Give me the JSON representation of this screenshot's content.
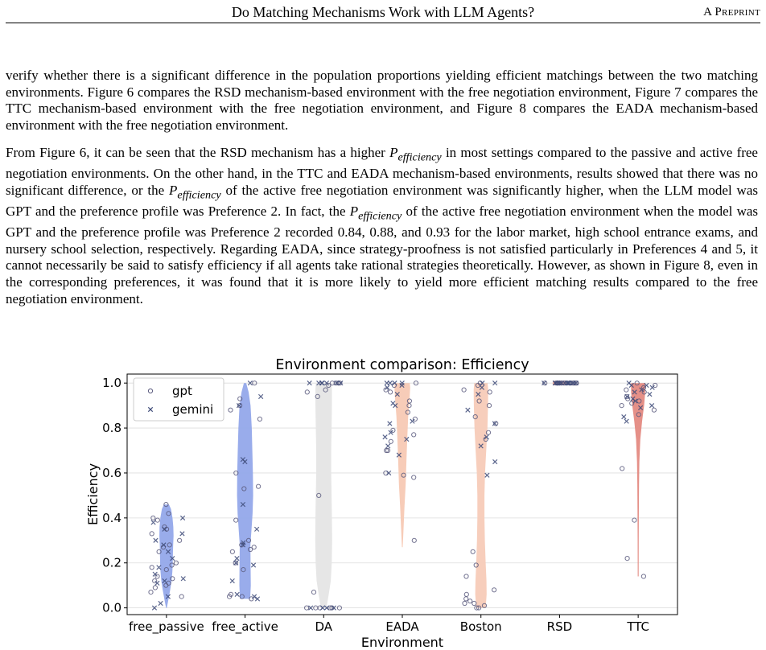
{
  "header": {
    "title": "Do Matching Mechanisms Work with LLM Agents?",
    "right_label": "A Preprint"
  },
  "para1": {
    "text": "verify whether there is a significant difference in the population proportions yielding efficient matchings between the two matching environments. Figure 6 compares the RSD mechanism-based environment with the free negotiation environment, Figure 7 compares the TTC mechanism-based environment with the free negotiation environment, and Figure 8 compares the EADA mechanism-based environment with the free negotiation environment."
  },
  "para2": {
    "s1": "From Figure 6, it can be seen that the RSD mechanism has a higher ",
    "var_1": "P",
    "sub_1": "efficiency",
    "s2": " in most settings compared to the passive and active free negotiation environments. On the other hand, in the TTC and EADA mechanism-based environments, results showed that there was no significant difference, or the ",
    "var_2": "P",
    "sub_2": "efficiency",
    "s3": " of the active free negotiation environment was significantly higher, when the LLM model was GPT and the preference profile was Preference 2. In fact, the ",
    "var_3": "P",
    "sub_3": "efficiency",
    "s4": " of the active free negotiation environment when the model was GPT and the preference profile was Preference 2 recorded 0.84, 0.88, and 0.93 for the labor market, high school entrance exams, and nursery school selection, respectively. Regarding EADA, since strategy-proofness is not satisfied particularly in Preferences 4 and 5, it cannot necessarily be said to satisfy efficiency if all agents take rational strategies theoretically. However, as shown in Figure 8, even in the corresponding preferences, it was found that it is more likely to yield more efficient matching results compared to the free negotiation environment."
  },
  "chart_data": {
    "type": "violin",
    "title": "Environment comparison: Efficiency",
    "xlabel": "Environment",
    "ylabel": "Efficiency",
    "ylim": [
      -0.03,
      1.04
    ],
    "yticks": [
      "0.0",
      "0.2",
      "0.4",
      "0.6",
      "0.8",
      "1.0"
    ],
    "grid": true,
    "legend": {
      "position": "top-left",
      "entries": [
        "gpt",
        "gemini"
      ]
    },
    "categories": [
      "free_passive",
      "free_active",
      "DA",
      "EADA",
      "Boston",
      "RSD",
      "TTC"
    ],
    "colors": {
      "free_passive": "#93a8ea",
      "free_active": "#93a8ea",
      "DA": "#e5e5e5",
      "EADA": "#f7c9b4",
      "Boston": "#f7cbb8",
      "RSD": "#f3b29f",
      "TTC": "#e48a82",
      "gpt_marker": "#5a5a7e",
      "gemini_marker": "#3d4a78"
    },
    "violins": [
      {
        "profile": [
          [
            0.0,
            0.01
          ],
          [
            0.04,
            0.055
          ],
          [
            0.08,
            0.095
          ],
          [
            0.12,
            0.13
          ],
          [
            0.16,
            0.15
          ],
          [
            0.2,
            0.16
          ],
          [
            0.24,
            0.165
          ],
          [
            0.28,
            0.17
          ],
          [
            0.32,
            0.18
          ],
          [
            0.36,
            0.175
          ],
          [
            0.4,
            0.155
          ],
          [
            0.44,
            0.115
          ],
          [
            0.46,
            0.065
          ]
        ]
      },
      {
        "profile": [
          [
            0.04,
            0.13
          ],
          [
            0.1,
            0.145
          ],
          [
            0.2,
            0.14
          ],
          [
            0.28,
            0.135
          ],
          [
            0.34,
            0.16
          ],
          [
            0.42,
            0.19
          ],
          [
            0.5,
            0.205
          ],
          [
            0.6,
            0.2
          ],
          [
            0.7,
            0.185
          ],
          [
            0.8,
            0.17
          ],
          [
            0.9,
            0.14
          ],
          [
            0.96,
            0.09
          ],
          [
            1.0,
            0.03
          ]
        ]
      },
      {
        "profile": [
          [
            0.0,
            0.07
          ],
          [
            0.05,
            0.12
          ],
          [
            0.12,
            0.18
          ],
          [
            0.2,
            0.205
          ],
          [
            0.3,
            0.215
          ],
          [
            0.4,
            0.21
          ],
          [
            0.5,
            0.2
          ],
          [
            0.6,
            0.19
          ],
          [
            0.7,
            0.19
          ],
          [
            0.8,
            0.2
          ],
          [
            0.9,
            0.21
          ],
          [
            0.97,
            0.21
          ],
          [
            1.0,
            0.2
          ]
        ]
      },
      {
        "profile": [
          [
            0.27,
            0.01
          ],
          [
            0.35,
            0.03
          ],
          [
            0.45,
            0.055
          ],
          [
            0.55,
            0.085
          ],
          [
            0.65,
            0.105
          ],
          [
            0.75,
            0.125
          ],
          [
            0.85,
            0.15
          ],
          [
            0.93,
            0.185
          ],
          [
            0.98,
            0.2
          ],
          [
            1.0,
            0.19
          ]
        ]
      },
      {
        "profile": [
          [
            0.0,
            0.12
          ],
          [
            0.06,
            0.145
          ],
          [
            0.12,
            0.14
          ],
          [
            0.2,
            0.12
          ],
          [
            0.3,
            0.1
          ],
          [
            0.4,
            0.09
          ],
          [
            0.5,
            0.09
          ],
          [
            0.6,
            0.105
          ],
          [
            0.7,
            0.135
          ],
          [
            0.8,
            0.165
          ],
          [
            0.9,
            0.18
          ],
          [
            0.97,
            0.185
          ],
          [
            1.0,
            0.17
          ]
        ]
      },
      {
        "profile": [
          [
            0.99,
            0.16
          ],
          [
            1.0,
            0.18
          ],
          [
            1.01,
            0.16
          ]
        ]
      },
      {
        "profile": [
          [
            0.14,
            0.012
          ],
          [
            0.3,
            0.014
          ],
          [
            0.45,
            0.018
          ],
          [
            0.55,
            0.022
          ],
          [
            0.65,
            0.03
          ],
          [
            0.75,
            0.055
          ],
          [
            0.83,
            0.1
          ],
          [
            0.9,
            0.15
          ],
          [
            0.96,
            0.18
          ],
          [
            1.0,
            0.18
          ]
        ]
      }
    ],
    "points": [
      {
        "category": "free_passive",
        "gpt": [
          0.46,
          0.42,
          0.4,
          0.39,
          0.36,
          0.35,
          0.33,
          0.3,
          0.28,
          0.27,
          0.25,
          0.2,
          0.19,
          0.18,
          0.17,
          0.14,
          0.13,
          0.12,
          0.11,
          0.1,
          0.09,
          0.07,
          0.05
        ],
        "gemini": [
          0.4,
          0.38,
          0.35,
          0.33,
          0.3,
          0.28,
          0.25,
          0.22,
          0.18,
          0.15,
          0.13,
          0.12,
          0.11,
          0.05,
          0.02,
          0.0
        ]
      },
      {
        "category": "free_active",
        "gpt": [
          1.0,
          0.93,
          0.9,
          0.88,
          0.84,
          0.6,
          0.54,
          0.53,
          0.39,
          0.3,
          0.28,
          0.27,
          0.26,
          0.25,
          0.2,
          0.17,
          0.06,
          0.05,
          0.05,
          0.04
        ],
        "gemini": [
          1.0,
          0.94,
          0.9,
          0.66,
          0.65,
          0.46,
          0.35,
          0.29,
          0.28,
          0.22,
          0.2,
          0.19,
          0.12,
          0.06,
          0.05,
          0.04
        ]
      },
      {
        "category": "DA",
        "gpt": [
          1.0,
          1.0,
          1.0,
          1.0,
          0.99,
          0.97,
          0.96,
          0.94,
          0.5,
          0.07,
          0.0,
          0.0,
          0.0,
          0.0,
          0.0,
          0.0
        ],
        "gemini": [
          1.0,
          1.0,
          1.0,
          1.0,
          1.0,
          1.0,
          1.0,
          0.0,
          0.0,
          0.0,
          0.0
        ]
      },
      {
        "category": "EADA",
        "gpt": [
          1.0,
          0.99,
          0.97,
          0.96,
          0.92,
          0.9,
          0.87,
          0.84,
          0.79,
          0.77,
          0.74,
          0.7,
          0.7,
          0.6,
          0.59,
          0.58,
          0.3
        ],
        "gemini": [
          1.0,
          1.0,
          1.0,
          1.0,
          0.99,
          0.98,
          0.95,
          0.91,
          0.9,
          0.83,
          0.82,
          0.78,
          0.76,
          0.75,
          0.72,
          0.68,
          0.6
        ]
      },
      {
        "category": "Boston",
        "gpt": [
          1.0,
          0.99,
          0.97,
          0.96,
          0.92,
          0.9,
          0.85,
          0.82,
          0.78,
          0.75,
          0.25,
          0.19,
          0.14,
          0.08,
          0.06,
          0.04,
          0.03,
          0.02,
          0.02,
          0.01,
          0.0,
          0.0
        ],
        "gemini": [
          1.0,
          1.0,
          0.98,
          0.95,
          0.88,
          0.82,
          0.76,
          0.72,
          0.65,
          0.59
        ]
      },
      {
        "category": "RSD",
        "gpt": [
          1.0,
          1.0,
          1.0,
          1.0,
          1.0,
          1.0,
          1.0,
          1.0,
          1.0,
          1.0,
          1.0,
          1.0,
          1.0,
          1.0
        ],
        "gemini": [
          1.0,
          1.0,
          1.0,
          1.0,
          1.0,
          1.0,
          1.0,
          1.0,
          1.0,
          1.0,
          1.0,
          1.0
        ]
      },
      {
        "category": "TTC",
        "gpt": [
          1.0,
          0.99,
          0.98,
          0.97,
          0.96,
          0.94,
          0.93,
          0.92,
          0.91,
          0.9,
          0.88,
          0.86,
          0.62,
          0.39,
          0.22,
          0.14
        ],
        "gemini": [
          1.0,
          0.99,
          0.99,
          0.98,
          0.97,
          0.96,
          0.95,
          0.94,
          0.93,
          0.92,
          0.9,
          0.89,
          0.85,
          0.83
        ]
      }
    ]
  }
}
